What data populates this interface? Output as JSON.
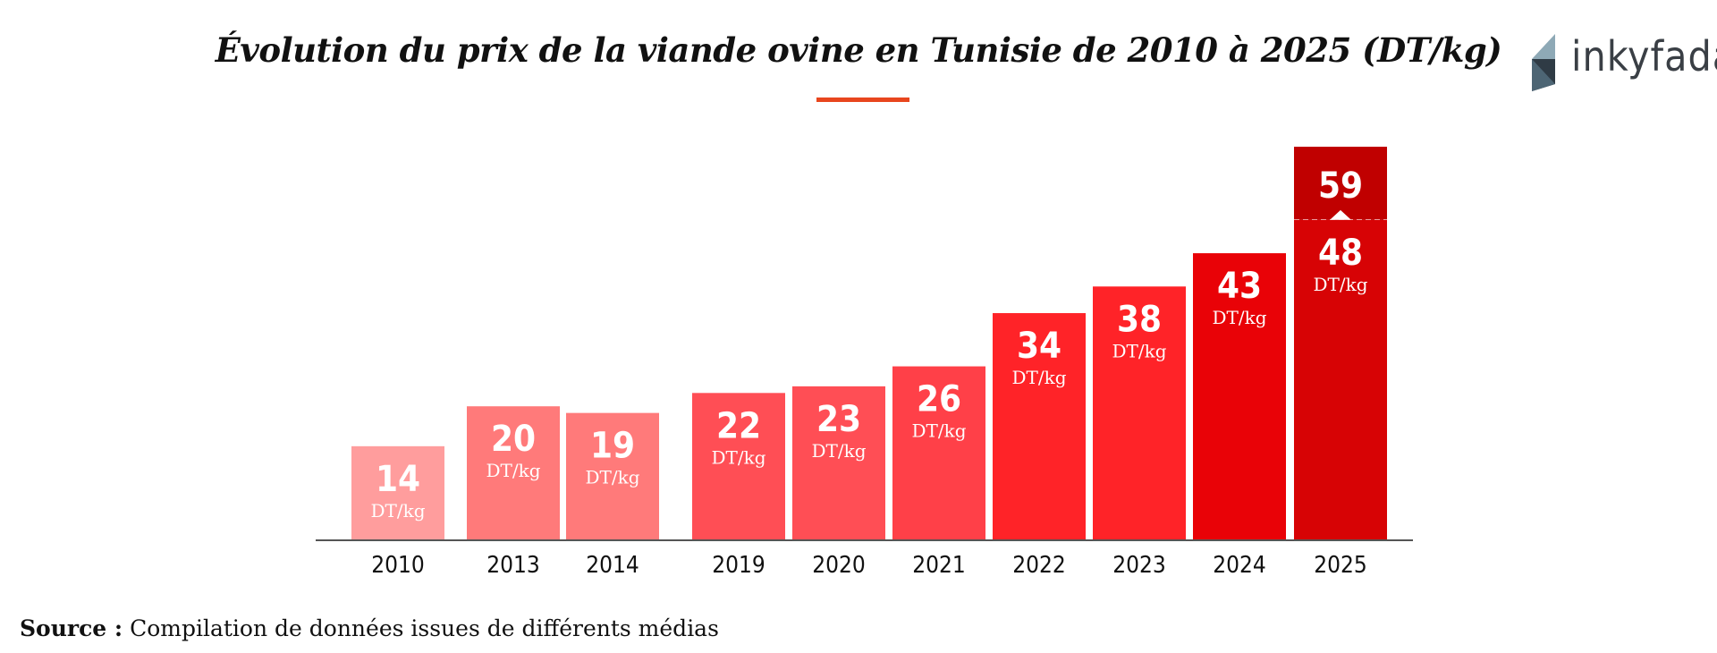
{
  "title": "Évolution du prix de la viande ovine en Tunisie de 2010 à 2025 (DT/kg)",
  "logo": {
    "name": "inkyfada",
    "icon": "inkyfada-logo-icon"
  },
  "source": {
    "label": "Source :",
    "text": "Compilation de données issues de différents médias"
  },
  "chart_data": {
    "type": "bar",
    "title": "Évolution du prix de la viande ovine en Tunisie de 2010 à 2025 (DT/kg)",
    "unit_label": "DT/kg",
    "categories": [
      "2010",
      "2013",
      "2014",
      "2019",
      "2020",
      "2021",
      "2022",
      "2023",
      "2024",
      "2025"
    ],
    "values": [
      14,
      20,
      19,
      22,
      23,
      26,
      34,
      38,
      43,
      48
    ],
    "colors": [
      "#ff9d9d",
      "#ff7a7a",
      "#ff7a7a",
      "#ff4e55",
      "#ff4e55",
      "#ff4048",
      "#ff2328",
      "#ff2328",
      "#e90207",
      "#d70305"
    ],
    "extension": {
      "category": "2025",
      "value": 59,
      "color": "#c00000"
    },
    "ylim": [
      0,
      60
    ],
    "grid": false,
    "legend": "none"
  }
}
